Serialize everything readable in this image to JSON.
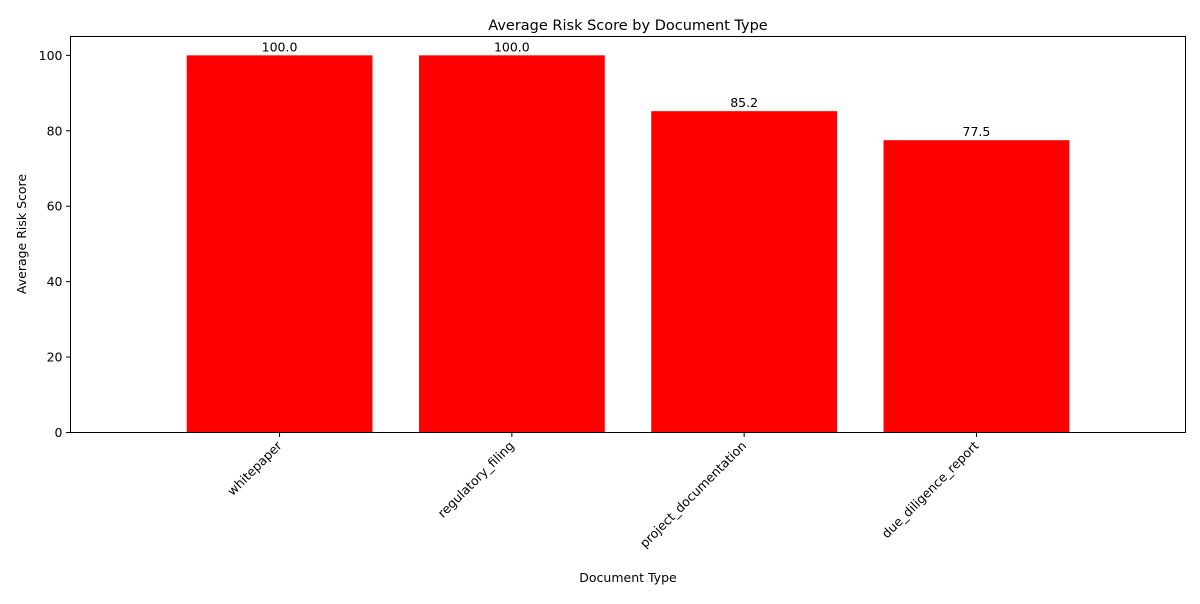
{
  "chart_data": {
    "type": "bar",
    "title": "Average Risk Score by Document Type",
    "xlabel": "Document Type",
    "ylabel": "Average Risk Score",
    "categories": [
      "whitepaper",
      "regulatory_filing",
      "project_documentation",
      "due_diligence_report"
    ],
    "values": [
      100.0,
      100.0,
      85.2,
      77.5
    ],
    "value_labels": [
      "100.0",
      "100.0",
      "85.2",
      "77.5"
    ],
    "ylim": [
      0,
      105
    ],
    "yticks": [
      0,
      20,
      40,
      60,
      80,
      100
    ],
    "ytick_labels": [
      "0",
      "20",
      "40",
      "60",
      "80",
      "100"
    ],
    "bar_color": "#ff0000",
    "grid": false,
    "legend": "none"
  }
}
